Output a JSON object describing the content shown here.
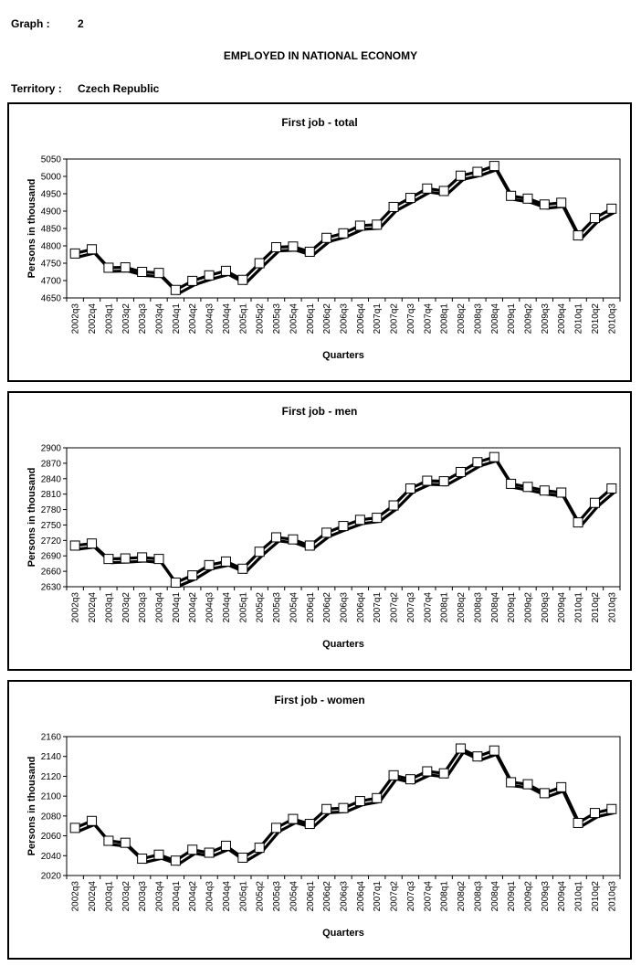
{
  "header": {
    "graph_label": "Graph :",
    "graph_number": "2",
    "main_title": "EMPLOYED IN NATIONAL ECONOMY",
    "territory_label": "Territory :",
    "territory_value": "Czech Republic"
  },
  "chart_data": [
    {
      "type": "line",
      "title": "First job - total",
      "xlabel": "Quarters",
      "ylabel": "Persons in thousand",
      "ylim": [
        4650,
        5050
      ],
      "yticks": [
        4650,
        4700,
        4750,
        4800,
        4850,
        4900,
        4950,
        5000,
        5050
      ],
      "categories": [
        "2002q3",
        "2002q4",
        "2003q1",
        "2003q2",
        "2003q3",
        "2003q4",
        "2004q1",
        "2004q2",
        "2004q3",
        "2004q4",
        "2005q1",
        "2005q2",
        "2005q3",
        "2005q4",
        "2006q1",
        "2006q2",
        "2006q3",
        "2006q4",
        "2007q1",
        "2007q2",
        "2007q3",
        "2007q4",
        "2008q1",
        "2008q2",
        "2008q3",
        "2008q4",
        "2009q1",
        "2009q2",
        "2009q3",
        "2009q4",
        "2010q1",
        "2010q2",
        "2010q3"
      ],
      "values": [
        4778,
        4790,
        4737,
        4738,
        4725,
        4722,
        4673,
        4699,
        4715,
        4728,
        4702,
        4750,
        4796,
        4798,
        4783,
        4823,
        4836,
        4858,
        4861,
        4912,
        4938,
        4965,
        4958,
        5002,
        5013,
        5030,
        4944,
        4936,
        4919,
        4924,
        4830,
        4880,
        4907
      ],
      "grid": false,
      "legend": "none"
    },
    {
      "type": "line",
      "title": "First job - men",
      "xlabel": "Quarters",
      "ylabel": "Persons in thousand",
      "ylim": [
        2630,
        2900
      ],
      "yticks": [
        2630,
        2660,
        2690,
        2720,
        2750,
        2780,
        2810,
        2840,
        2870,
        2900
      ],
      "categories": [
        "2002q3",
        "2002q4",
        "2003q1",
        "2003q2",
        "2003q3",
        "2003q4",
        "2004q1",
        "2004q2",
        "2004q3",
        "2004q4",
        "2005q1",
        "2005q2",
        "2005q3",
        "2005q4",
        "2006q1",
        "2006q2",
        "2006q3",
        "2006q4",
        "2007q1",
        "2007q2",
        "2007q3",
        "2007q4",
        "2008q1",
        "2008q2",
        "2008q3",
        "2008q4",
        "2009q1",
        "2009q2",
        "2009q3",
        "2009q4",
        "2010q1",
        "2010q2",
        "2010q3"
      ],
      "values": [
        2710,
        2714,
        2684,
        2685,
        2687,
        2684,
        2638,
        2652,
        2672,
        2679,
        2665,
        2698,
        2726,
        2722,
        2710,
        2735,
        2748,
        2760,
        2764,
        2788,
        2821,
        2836,
        2835,
        2853,
        2872,
        2882,
        2830,
        2824,
        2817,
        2813,
        2755,
        2793,
        2821
      ],
      "grid": false,
      "legend": "none"
    },
    {
      "type": "line",
      "title": "First job - women",
      "xlabel": "Quarters",
      "ylabel": "Persons in thousand",
      "ylim": [
        2020,
        2160
      ],
      "yticks": [
        2020,
        2040,
        2060,
        2080,
        2100,
        2120,
        2140,
        2160
      ],
      "categories": [
        "2002q3",
        "2002q4",
        "2003q1",
        "2003q2",
        "2003q3",
        "2003q4",
        "2004q1",
        "2004q2",
        "2004q3",
        "2004q4",
        "2005q1",
        "2005q2",
        "2005q3",
        "2005q4",
        "2006q1",
        "2006q2",
        "2006q3",
        "2006q4",
        "2007q1",
        "2007q2",
        "2007q3",
        "2007q4",
        "2008q1",
        "2008q2",
        "2008q3",
        "2008q4",
        "2009q1",
        "2009q2",
        "2009q3",
        "2009q4",
        "2010q1",
        "2010q2",
        "2010q3"
      ],
      "values": [
        2068,
        2075,
        2055,
        2053,
        2037,
        2041,
        2035,
        2046,
        2043,
        2050,
        2038,
        2048,
        2068,
        2077,
        2072,
        2087,
        2088,
        2095,
        2098,
        2121,
        2117,
        2125,
        2123,
        2148,
        2140,
        2146,
        2114,
        2112,
        2103,
        2109,
        2073,
        2083,
        2087
      ],
      "grid": false,
      "legend": "none"
    }
  ]
}
